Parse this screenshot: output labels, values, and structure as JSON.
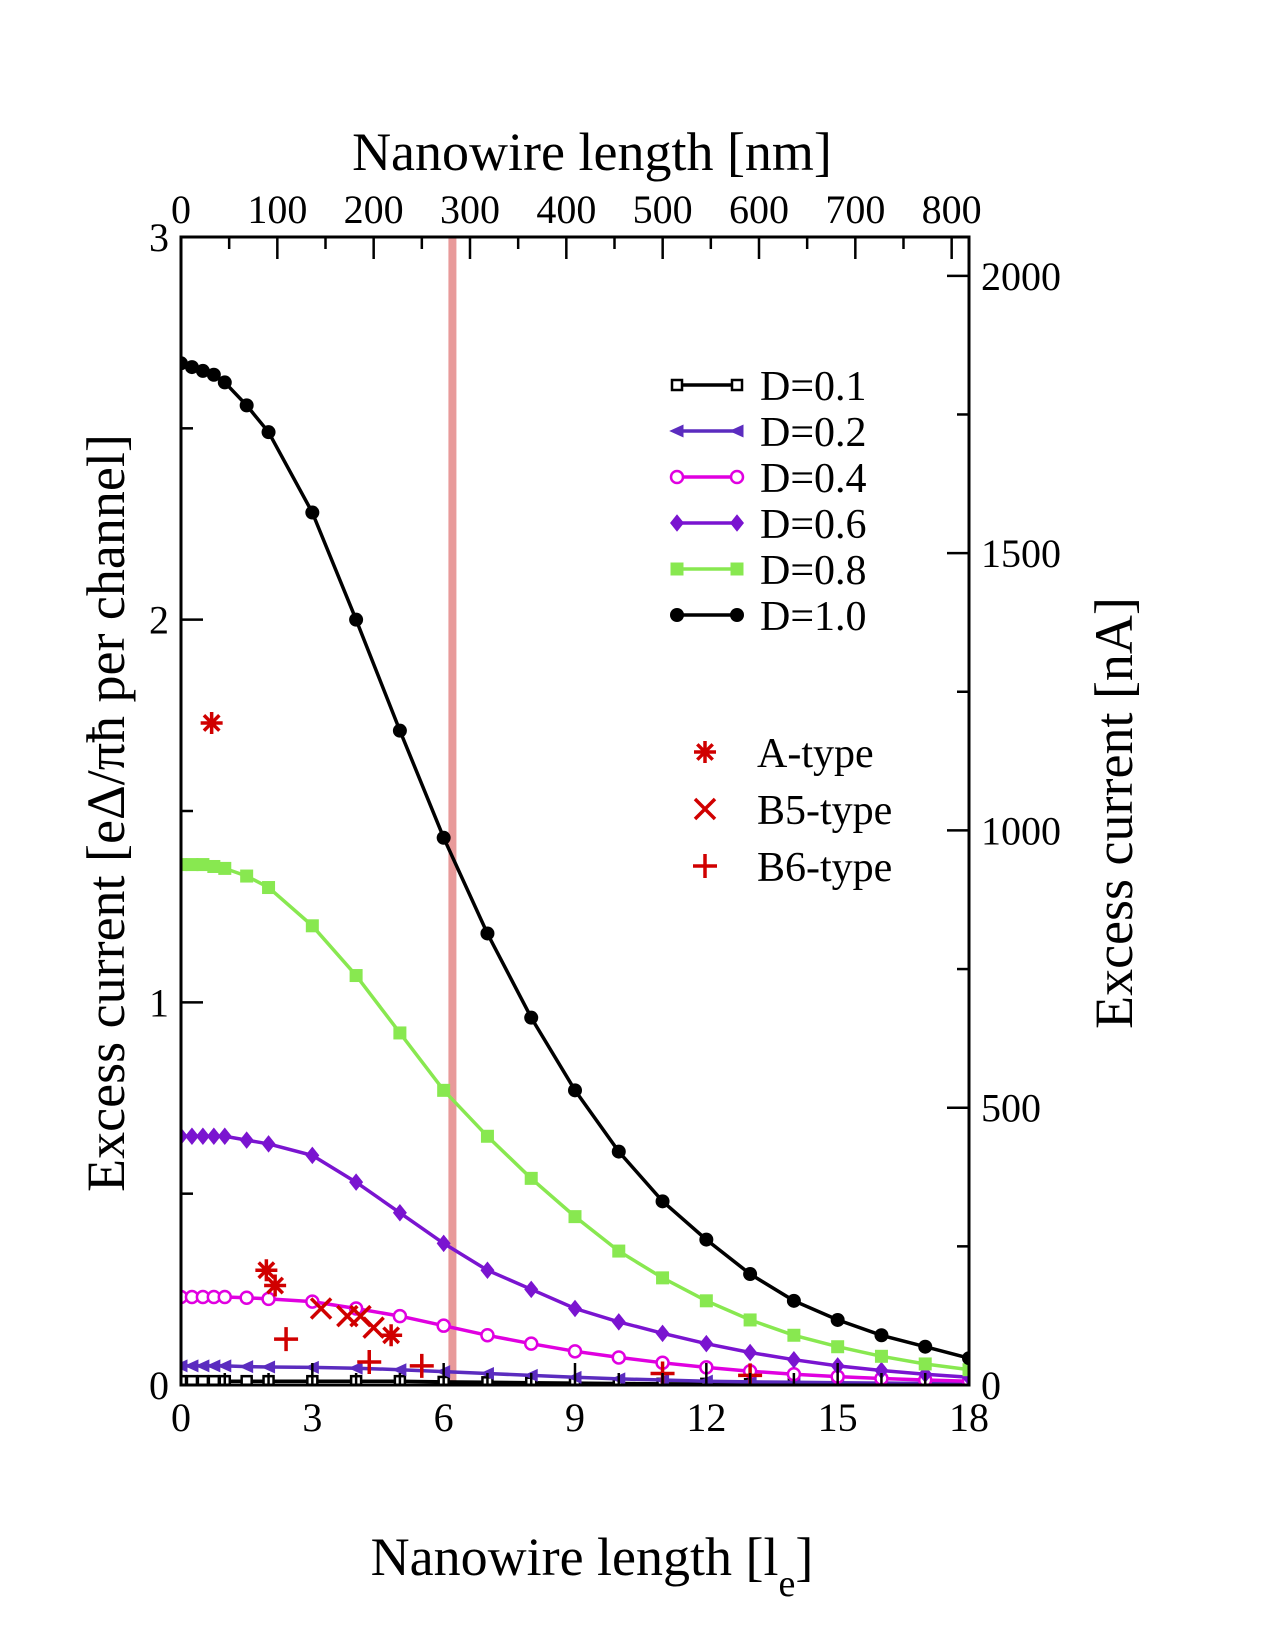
{
  "chart_data": {
    "type": "line",
    "title": "",
    "xlabel": "Nanowire length [l",
    "xlabel_sub": "e",
    "xlabel_end": "]",
    "ylabel": "Excess current [eΔ/πħ per channel]",
    "x2label": "Nanowire length [nm]",
    "y2label": "Excess current [nA]",
    "xlim": [
      0,
      18
    ],
    "ylim": [
      0,
      3
    ],
    "x2lim": [
      0,
      818
    ],
    "y2lim": [
      0,
      2070
    ],
    "xticks": [
      0,
      3,
      6,
      9,
      12,
      15,
      18
    ],
    "xtick_labels": [
      "0",
      "3",
      "6",
      "9",
      "12",
      "15",
      "18"
    ],
    "yticks": [
      0,
      1,
      2,
      3
    ],
    "ytick_labels": [
      "0",
      "1",
      "2",
      "3"
    ],
    "x2ticks": [
      0,
      100,
      200,
      300,
      400,
      500,
      600,
      700,
      800
    ],
    "x2tick_labels": [
      "0",
      "100",
      "200",
      "300",
      "400",
      "500",
      "600",
      "700",
      "800"
    ],
    "y2ticks": [
      0,
      500,
      1000,
      1500,
      2000
    ],
    "y2tick_labels": [
      "0",
      "500",
      "1000",
      "1500",
      "2000"
    ],
    "vertical_line": {
      "x": 6.2,
      "color": "#e89a9a"
    },
    "x": [
      0,
      0.25,
      0.5,
      0.75,
      1,
      1.5,
      2,
      3,
      4,
      5,
      6,
      7,
      8,
      9,
      10,
      11,
      12,
      13,
      14,
      15,
      16,
      17,
      18
    ],
    "series": [
      {
        "name": "D=0.1",
        "color": "#000000",
        "marker": "square-open",
        "values": [
          0.01,
          0.01,
          0.01,
          0.01,
          0.01,
          0.01,
          0.01,
          0.01,
          0.01,
          0.01,
          0.008,
          0.007,
          0.006,
          0.005,
          0.004,
          0.003,
          0.003,
          0.002,
          0.002,
          0.002,
          0.001,
          0.001,
          0.001
        ]
      },
      {
        "name": "D=0.2",
        "color": "#5b2cbf",
        "marker": "triangle-left",
        "values": [
          0.05,
          0.05,
          0.05,
          0.05,
          0.05,
          0.048,
          0.047,
          0.046,
          0.044,
          0.04,
          0.035,
          0.03,
          0.025,
          0.02,
          0.016,
          0.013,
          0.01,
          0.008,
          0.007,
          0.006,
          0.005,
          0.004,
          0.003
        ]
      },
      {
        "name": "D=0.4",
        "color": "#e000e0",
        "marker": "circle-open",
        "values": [
          0.23,
          0.23,
          0.23,
          0.23,
          0.23,
          0.228,
          0.225,
          0.218,
          0.2,
          0.18,
          0.155,
          0.13,
          0.108,
          0.088,
          0.072,
          0.058,
          0.046,
          0.036,
          0.028,
          0.022,
          0.017,
          0.013,
          0.01
        ]
      },
      {
        "name": "D=0.6",
        "color": "#7a14d0",
        "marker": "diamond",
        "values": [
          0.65,
          0.65,
          0.65,
          0.65,
          0.65,
          0.64,
          0.63,
          0.6,
          0.53,
          0.45,
          0.37,
          0.3,
          0.25,
          0.2,
          0.165,
          0.135,
          0.108,
          0.085,
          0.066,
          0.05,
          0.038,
          0.028,
          0.02
        ]
      },
      {
        "name": "D=0.8",
        "color": "#88e850",
        "marker": "square",
        "values": [
          1.36,
          1.36,
          1.36,
          1.355,
          1.35,
          1.33,
          1.3,
          1.2,
          1.07,
          0.92,
          0.77,
          0.65,
          0.54,
          0.44,
          0.35,
          0.28,
          0.22,
          0.17,
          0.13,
          0.1,
          0.075,
          0.055,
          0.04
        ]
      },
      {
        "name": "D=1.0",
        "color": "#000000",
        "marker": "circle",
        "values": [
          2.67,
          2.66,
          2.65,
          2.64,
          2.62,
          2.56,
          2.49,
          2.28,
          2.0,
          1.71,
          1.43,
          1.18,
          0.96,
          0.77,
          0.61,
          0.48,
          0.38,
          0.29,
          0.22,
          0.17,
          0.13,
          0.1,
          0.07
        ]
      }
    ],
    "experimental": [
      {
        "name": "A-type",
        "color": "#d00000",
        "marker": "asterisk",
        "points": [
          [
            0.7,
            1.73
          ],
          [
            1.95,
            0.3
          ],
          [
            2.15,
            0.26
          ],
          [
            4.8,
            0.13
          ]
        ]
      },
      {
        "name": "B5-type",
        "color": "#d00000",
        "marker": "x",
        "points": [
          [
            3.2,
            0.2
          ],
          [
            3.8,
            0.18
          ],
          [
            4.1,
            0.18
          ],
          [
            4.4,
            0.15
          ]
        ]
      },
      {
        "name": "B6-type",
        "color": "#d00000",
        "marker": "plus",
        "points": [
          [
            2.4,
            0.12
          ],
          [
            4.3,
            0.06
          ],
          [
            5.5,
            0.05
          ],
          [
            11,
            0.03
          ],
          [
            13,
            0.025
          ]
        ]
      }
    ],
    "legend_position": "top-right"
  }
}
